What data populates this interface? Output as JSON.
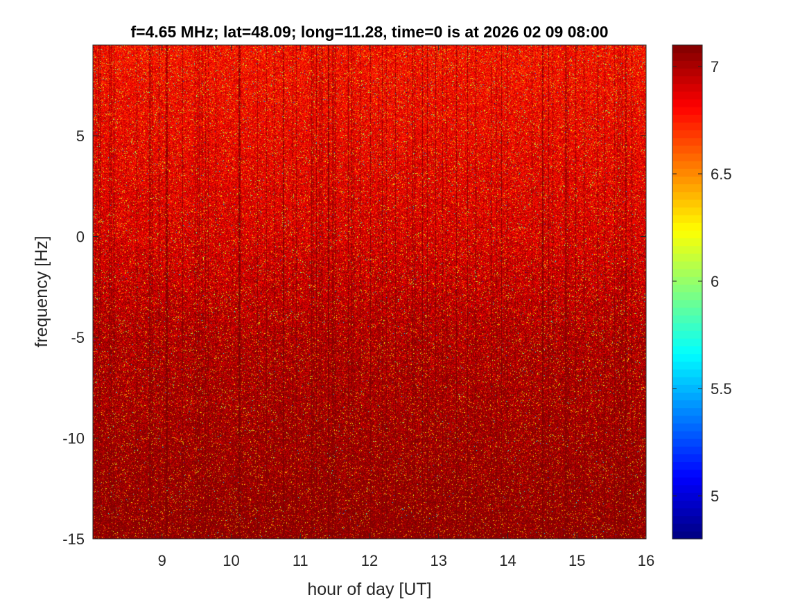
{
  "chart_data": {
    "type": "heatmap",
    "title": "f=4.65 MHz;  lat=48.09; long=11.28, time=0 is at 2026 02 09 08:00",
    "xlabel": "hour of day [UT]",
    "ylabel": "frequency [Hz]",
    "xlim": [
      8,
      16
    ],
    "ylim": [
      -15,
      9.5
    ],
    "x_ticks": [
      9,
      10,
      11,
      12,
      13,
      14,
      15,
      16
    ],
    "y_ticks": [
      -15,
      -10,
      -5,
      0,
      5
    ],
    "colorbar": {
      "colormap": "jet",
      "clim": [
        4.8,
        7.1
      ],
      "ticks": [
        5,
        5.5,
        6,
        6.5,
        7
      ]
    },
    "dominant_level_by_frequency": [
      {
        "frequency": 9,
        "value": 6.8
      },
      {
        "frequency": 0,
        "value": 6.9
      },
      {
        "frequency": -5,
        "value": 7.0
      },
      {
        "frequency": -15,
        "value": 7.1
      }
    ],
    "grid": false
  }
}
